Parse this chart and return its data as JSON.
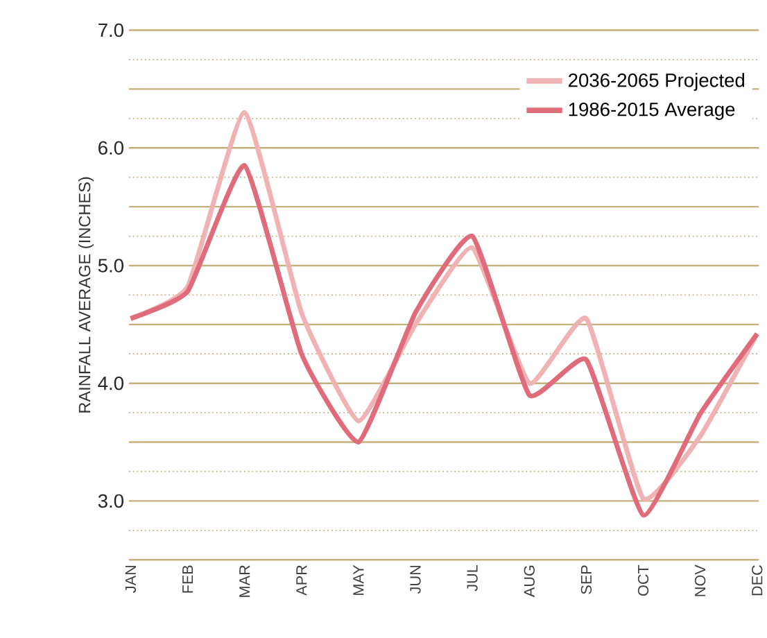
{
  "chart_data": {
    "type": "line",
    "ylabel": "RAINFALL AVERAGE (INCHES)",
    "categories": [
      "JAN",
      "FEB",
      "MAR",
      "APR",
      "MAY",
      "JUN",
      "JUL",
      "AUG",
      "SEP",
      "OCT",
      "NOV",
      "DEC"
    ],
    "series": [
      {
        "name": "2036-2065 Projected",
        "color": "#f0b3b3",
        "values": [
          4.55,
          4.82,
          6.3,
          4.6,
          3.68,
          4.5,
          5.15,
          4.0,
          4.55,
          3.02,
          3.55,
          4.42
        ]
      },
      {
        "name": "1986-2015 Average",
        "color": "#e06b7a",
        "values": [
          4.55,
          4.78,
          5.85,
          4.25,
          3.5,
          4.6,
          5.25,
          3.9,
          4.2,
          2.88,
          3.74,
          4.42
        ]
      }
    ],
    "ylim": [
      2.5,
      7.0
    ],
    "yticks": [
      {
        "value": 2.5,
        "label": null
      },
      {
        "value": 2.75,
        "label": null
      },
      {
        "value": 3,
        "label": "3.0"
      },
      {
        "value": 3.25,
        "label": null
      },
      {
        "value": 3.5,
        "label": null
      },
      {
        "value": 3.75,
        "label": null
      },
      {
        "value": 4,
        "label": "4.0"
      },
      {
        "value": 4.25,
        "label": null
      },
      {
        "value": 4.5,
        "label": null
      },
      {
        "value": 4.75,
        "label": null
      },
      {
        "value": 5,
        "label": "5.0"
      },
      {
        "value": 5.25,
        "label": null
      },
      {
        "value": 5.5,
        "label": null
      },
      {
        "value": 5.75,
        "label": null
      },
      {
        "value": 6,
        "label": "6.0"
      },
      {
        "value": 6.25,
        "label": null
      },
      {
        "value": 6.5,
        "label": null
      },
      {
        "value": 6.75,
        "label": null
      },
      {
        "value": 7,
        "label": "7.0"
      }
    ],
    "grid": "y",
    "legend": "top right",
    "marker": "none",
    "line_style": "solid"
  }
}
